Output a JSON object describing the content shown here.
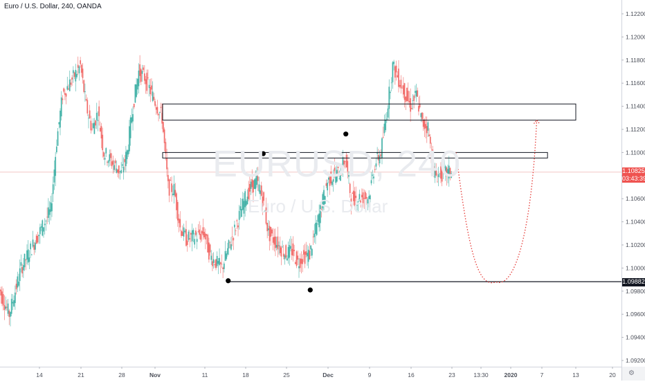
{
  "header": {
    "title": "Euro / U.S. Dollar, 240, OANDA"
  },
  "watermark": {
    "symbol": "EURUSD, 240",
    "description": "Euro / U.S. Dollar"
  },
  "price_labels": {
    "current_price": "1.10825",
    "countdown": "03:43:39",
    "support_level": "1.09882"
  },
  "corner_icon": "gear-icon",
  "colors": {
    "up_candle": "#26a69a",
    "down_candle": "#ef5350",
    "current_price_tag": "#ef5350",
    "support_tag": "#131722",
    "forecast_path": "#e53935"
  },
  "chart_data": {
    "type": "candlestick",
    "symbol": "EURUSD",
    "timeframe": "240",
    "exchange": "OANDA",
    "ylim": [
      1.0915,
      1.1235
    ],
    "y_ticks": [
      "1.12200",
      "1.12000",
      "1.11800",
      "1.11600",
      "1.11400",
      "1.11200",
      "1.11000",
      "1.10800",
      "1.10600",
      "1.10400",
      "1.10200",
      "1.10000",
      "1.09800",
      "1.09600",
      "1.09400",
      "1.09200"
    ],
    "x_ticks": [
      "14",
      "21",
      "28",
      "Nov",
      "11",
      "18",
      "25",
      "Dec",
      "9",
      "16",
      "23",
      "13:30",
      "2020",
      "7",
      "13",
      "20"
    ],
    "price_path": [
      {
        "date": "Oct 7",
        "close": 1.0985
      },
      {
        "date": "Oct 9",
        "close": 1.096
      },
      {
        "date": "Oct 11",
        "close": 1.1
      },
      {
        "date": "Oct 14",
        "close": 1.103
      },
      {
        "date": "Oct 16",
        "close": 1.105
      },
      {
        "date": "Oct 17",
        "close": 1.111
      },
      {
        "date": "Oct 18",
        "close": 1.115
      },
      {
        "date": "Oct 21",
        "close": 1.1175
      },
      {
        "date": "Oct 22",
        "close": 1.114
      },
      {
        "date": "Oct 23",
        "close": 1.112
      },
      {
        "date": "Oct 24",
        "close": 1.1135
      },
      {
        "date": "Oct 25",
        "close": 1.11
      },
      {
        "date": "Oct 28",
        "close": 1.1082
      },
      {
        "date": "Oct 29",
        "close": 1.11
      },
      {
        "date": "Oct 30",
        "close": 1.114
      },
      {
        "date": "Oct 31",
        "close": 1.117
      },
      {
        "date": "Nov 1",
        "close": 1.1165
      },
      {
        "date": "Nov 4",
        "close": 1.113
      },
      {
        "date": "Nov 5",
        "close": 1.107
      },
      {
        "date": "Nov 6",
        "close": 1.1068
      },
      {
        "date": "Nov 7",
        "close": 1.1035
      },
      {
        "date": "Nov 8",
        "close": 1.1025
      },
      {
        "date": "Nov 11",
        "close": 1.103
      },
      {
        "date": "Nov 12",
        "close": 1.101
      },
      {
        "date": "Nov 13",
        "close": 1.1005
      },
      {
        "date": "Nov 14",
        "close": 1.1
      },
      {
        "date": "Nov 15",
        "close": 1.1015
      },
      {
        "date": "Nov 18",
        "close": 1.106
      },
      {
        "date": "Nov 19",
        "close": 1.107
      },
      {
        "date": "Nov 20",
        "close": 1.1075
      },
      {
        "date": "Nov 21",
        "close": 1.106
      },
      {
        "date": "Nov 22",
        "close": 1.103
      },
      {
        "date": "Nov 25",
        "close": 1.1012
      },
      {
        "date": "Nov 26",
        "close": 1.1015
      },
      {
        "date": "Nov 27",
        "close": 1.1005
      },
      {
        "date": "Nov 28",
        "close": 1.101
      },
      {
        "date": "Nov 29",
        "close": 1.1012
      },
      {
        "date": "Dec 2",
        "close": 1.1075
      },
      {
        "date": "Dec 3",
        "close": 1.108
      },
      {
        "date": "Dec 4",
        "close": 1.1082
      },
      {
        "date": "Dec 5",
        "close": 1.1095
      },
      {
        "date": "Dec 6",
        "close": 1.106
      },
      {
        "date": "Dec 9",
        "close": 1.1062
      },
      {
        "date": "Dec 10",
        "close": 1.109
      },
      {
        "date": "Dec 11",
        "close": 1.11
      },
      {
        "date": "Dec 12",
        "close": 1.1135
      },
      {
        "date": "Dec 13",
        "close": 1.1175
      },
      {
        "date": "Dec 16",
        "close": 1.114
      },
      {
        "date": "Dec 17",
        "close": 1.115
      },
      {
        "date": "Dec 18",
        "close": 1.1125
      },
      {
        "date": "Dec 19",
        "close": 1.1122
      },
      {
        "date": "Dec 20",
        "close": 1.108
      },
      {
        "date": "Dec 23",
        "close": 1.1083
      }
    ],
    "annotations": {
      "zones": [
        {
          "role": "upper-resistance-zone",
          "from_date": "Nov 4",
          "to_date": "Jan 13",
          "low": 1.1128,
          "high": 1.1142
        },
        {
          "role": "lower-resistance-zone",
          "from_date": "Nov 4",
          "to_date": "Jan 8",
          "low": 1.1098,
          "high": 1.11
        }
      ],
      "horizontal_line": {
        "role": "support-line",
        "from_date": "Nov 15",
        "price": 1.09882
      },
      "markers": [
        {
          "role": "low-marker",
          "date": "Nov 15",
          "price": 1.0989
        },
        {
          "role": "high-marker",
          "date": "Nov 21",
          "price": 1.1099
        },
        {
          "role": "low-marker",
          "date": "Nov 29",
          "price": 1.0981
        },
        {
          "role": "high-marker",
          "date": "Dec 5",
          "price": 1.1116
        }
      ],
      "forecast_path": {
        "role": "projected-path",
        "points": [
          {
            "date": "Dec 24",
            "price": 1.11
          },
          {
            "date": "Dec 31",
            "price": 1.0988
          },
          {
            "date": "Jan 3",
            "price": 1.104
          },
          {
            "date": "Jan 6",
            "price": 1.1128
          }
        ]
      }
    }
  }
}
